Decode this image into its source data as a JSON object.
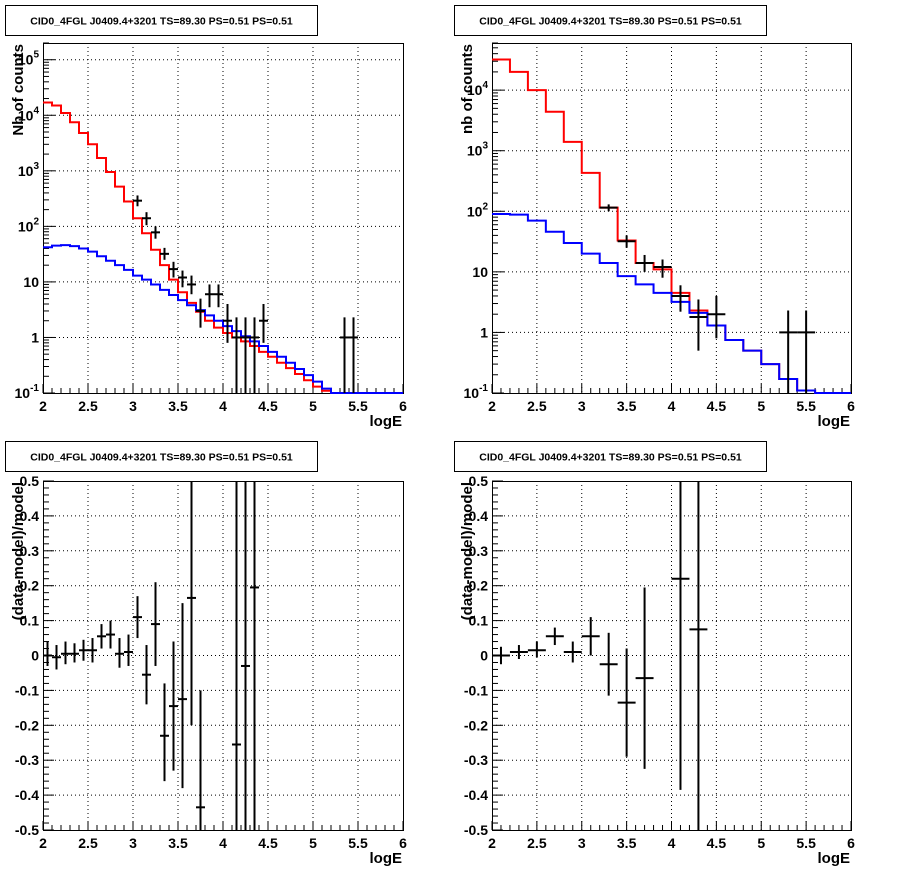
{
  "colors": {
    "data": "#000000",
    "total_model": "#ff0000",
    "component_model": "#0000ff",
    "grid": "#000000"
  },
  "chart_data": [
    {
      "type": "line",
      "title": "CID0_4FGL J0409.4+3201 TS=89.30 PS=0.51 PS=0.51",
      "xlabel": "logE",
      "ylabel": "Nb of counts",
      "xlim": [
        2,
        6
      ],
      "ylim": [
        0.1,
        200000
      ],
      "yscale": "log",
      "grid": true,
      "x_ticks": [
        "2",
        "2.5",
        "3",
        "3.5",
        "4",
        "4.5",
        "5",
        "5.5",
        "6"
      ],
      "y_ticks": [
        {
          "value": 0.1,
          "base": "10",
          "exp": "-1"
        },
        {
          "value": 1,
          "base": "1",
          "exp": ""
        },
        {
          "value": 10,
          "base": "10",
          "exp": ""
        },
        {
          "value": 100,
          "base": "10",
          "exp": "2"
        },
        {
          "value": 1000,
          "base": "10",
          "exp": "3"
        },
        {
          "value": 10000,
          "base": "10",
          "exp": "4"
        },
        {
          "value": 100000,
          "base": "10",
          "exp": "5"
        }
      ],
      "bin_edges": [
        2.0,
        2.1,
        2.2,
        2.3,
        2.4,
        2.5,
        2.6,
        2.7,
        2.8,
        2.9,
        3.0,
        3.1,
        3.2,
        3.3,
        3.4,
        3.5,
        3.6,
        3.7,
        3.8,
        3.9,
        4.0,
        4.1,
        4.2,
        4.3,
        4.4,
        4.5,
        4.6,
        4.7,
        4.8,
        4.9,
        5.0,
        5.1,
        5.2,
        5.3,
        5.4,
        5.5,
        5.6,
        5.7,
        5.8,
        5.9,
        6.0
      ],
      "series": [
        {
          "role": "total_model",
          "draw": "step",
          "values": [
            17000,
            15000,
            11000,
            7500,
            4800,
            3000,
            1700,
            950,
            520,
            280,
            140,
            75,
            38,
            20,
            11,
            6.5,
            4.2,
            2.9,
            2.0,
            1.5,
            1.2,
            1.0,
            0.85,
            0.7,
            0.55,
            0.45,
            0.35,
            0.28,
            0.22,
            0.17,
            0.13,
            0.11,
            0.1,
            0.1,
            0.1,
            0.1,
            0.1,
            0.1,
            0.1,
            0.1
          ]
        },
        {
          "role": "component_model",
          "draw": "step",
          "values": [
            42,
            45,
            46,
            44,
            40,
            35,
            29,
            24,
            20,
            16.5,
            13,
            11,
            9,
            7.2,
            5.8,
            4.7,
            3.8,
            3.1,
            2.5,
            2.0,
            1.6,
            1.3,
            1.05,
            0.85,
            0.7,
            0.55,
            0.45,
            0.35,
            0.27,
            0.21,
            0.16,
            0.12,
            0.1,
            0.1,
            0.1,
            0.1,
            0.1,
            0.1,
            0.1,
            0.1
          ]
        },
        {
          "role": "data",
          "draw": "points",
          "points": [
            {
              "x": 3.05,
              "y": 290,
              "lo": 230,
              "hi": 360
            },
            {
              "x": 3.15,
              "y": 140,
              "lo": 105,
              "hi": 180
            },
            {
              "x": 3.25,
              "y": 78,
              "lo": 60,
              "hi": 100
            },
            {
              "x": 3.35,
              "y": 32,
              "lo": 25,
              "hi": 41
            },
            {
              "x": 3.45,
              "y": 17,
              "lo": 12,
              "hi": 23
            },
            {
              "x": 3.55,
              "y": 12,
              "lo": 8,
              "hi": 16
            },
            {
              "x": 3.65,
              "y": 9,
              "lo": 6,
              "hi": 13
            },
            {
              "x": 3.75,
              "y": 3,
              "lo": 1.5,
              "hi": 5
            },
            {
              "x": 3.85,
              "y": 6,
              "lo": 3.5,
              "hi": 9
            },
            {
              "x": 3.95,
              "y": 6,
              "lo": 3.5,
              "hi": 9
            },
            {
              "x": 4.05,
              "y": 2,
              "lo": 0.8,
              "hi": 4
            },
            {
              "x": 4.15,
              "y": 1,
              "lo": 0.1,
              "hi": 2.3
            },
            {
              "x": 4.25,
              "y": 1,
              "lo": 0.1,
              "hi": 2.3
            },
            {
              "x": 4.35,
              "y": 1,
              "lo": 0.1,
              "hi": 2.3
            },
            {
              "x": 4.45,
              "y": 2,
              "lo": 0.8,
              "hi": 4
            },
            {
              "x": 5.35,
              "y": 1,
              "lo": 0.1,
              "hi": 2.3
            },
            {
              "x": 5.45,
              "y": 1,
              "lo": 0.1,
              "hi": 2.3
            }
          ]
        }
      ]
    },
    {
      "type": "line",
      "title": "CID0_4FGL J0409.4+3201 TS=89.30 PS=0.51 PS=0.51",
      "xlabel": "logE",
      "ylabel": "nb of counts",
      "xlim": [
        2,
        6
      ],
      "ylim": [
        0.1,
        60000
      ],
      "yscale": "log",
      "grid": true,
      "x_ticks": [
        "2",
        "2.5",
        "3",
        "3.5",
        "4",
        "4.5",
        "5",
        "5.5",
        "6"
      ],
      "y_ticks": [
        {
          "value": 0.1,
          "base": "10",
          "exp": "-1"
        },
        {
          "value": 1,
          "base": "1",
          "exp": ""
        },
        {
          "value": 10,
          "base": "10",
          "exp": ""
        },
        {
          "value": 100,
          "base": "10",
          "exp": "2"
        },
        {
          "value": 1000,
          "base": "10",
          "exp": "3"
        },
        {
          "value": 10000,
          "base": "10",
          "exp": "4"
        }
      ],
      "bin_edges": [
        2.0,
        2.2,
        2.4,
        2.6,
        2.8,
        3.0,
        3.2,
        3.4,
        3.6,
        3.8,
        4.0,
        4.2,
        4.4,
        4.6,
        4.8,
        5.0,
        5.2,
        5.4,
        5.6,
        5.8,
        6.0
      ],
      "series": [
        {
          "role": "total_model",
          "draw": "step",
          "values": [
            32000,
            20000,
            10000,
            4400,
            1400,
            430,
            115,
            33,
            14,
            11,
            4.5,
            2.3,
            1.3,
            0.75,
            0.5,
            0.3,
            0.17,
            0.11,
            0.1,
            0.1
          ]
        },
        {
          "role": "component_model",
          "draw": "step",
          "values": [
            90,
            88,
            70,
            46,
            30,
            20,
            14,
            8.5,
            6.2,
            4.5,
            3.2,
            2.1,
            1.3,
            0.75,
            0.5,
            0.3,
            0.17,
            0.11,
            0.1,
            0.1
          ]
        },
        {
          "role": "data",
          "draw": "points",
          "points": [
            {
              "x": 3.3,
              "y": 115,
              "lo": 100,
              "hi": 130
            },
            {
              "x": 3.5,
              "y": 32,
              "lo": 25,
              "hi": 40
            },
            {
              "x": 3.7,
              "y": 14,
              "lo": 10,
              "hi": 19
            },
            {
              "x": 3.9,
              "y": 12,
              "lo": 8,
              "hi": 16
            },
            {
              "x": 4.1,
              "y": 4,
              "lo": 2.2,
              "hi": 6
            },
            {
              "x": 4.3,
              "y": 1.8,
              "lo": 0.5,
              "hi": 3.5
            },
            {
              "x": 4.5,
              "y": 2,
              "lo": 0.8,
              "hi": 4
            },
            {
              "x": 5.3,
              "y": 1,
              "lo": 0.1,
              "hi": 2.3
            },
            {
              "x": 5.5,
              "y": 1,
              "lo": 0.1,
              "hi": 2.3
            }
          ]
        }
      ]
    },
    {
      "type": "scatter",
      "title": "CID0_4FGL J0409.4+3201 TS=89.30 PS=0.51 PS=0.51",
      "xlabel": "logE",
      "ylabel": "(data-model)/model",
      "xlim": [
        2,
        6
      ],
      "ylim": [
        -0.5,
        0.5
      ],
      "yscale": "linear",
      "grid": true,
      "x_ticks": [
        "2",
        "2.5",
        "3",
        "3.5",
        "4",
        "4.5",
        "5",
        "5.5",
        "6"
      ],
      "y_ticks": [
        "-0.5",
        "-0.4",
        "-0.3",
        "-0.2",
        "-0.1",
        "0",
        "0.1",
        "0.2",
        "0.3",
        "0.4",
        "0.5"
      ],
      "bin_half_width": 0.05,
      "series": [
        {
          "role": "data",
          "points": [
            {
              "x": 2.05,
              "y": 0.0,
              "lo": -0.03,
              "hi": 0.04
            },
            {
              "x": 2.15,
              "y": -0.005,
              "lo": -0.04,
              "hi": 0.03
            },
            {
              "x": 2.25,
              "y": 0.005,
              "lo": -0.025,
              "hi": 0.04
            },
            {
              "x": 2.35,
              "y": 0.005,
              "lo": -0.02,
              "hi": 0.035
            },
            {
              "x": 2.45,
              "y": 0.015,
              "lo": -0.015,
              "hi": 0.045
            },
            {
              "x": 2.55,
              "y": 0.015,
              "lo": -0.02,
              "hi": 0.05
            },
            {
              "x": 2.65,
              "y": 0.055,
              "lo": 0.02,
              "hi": 0.09
            },
            {
              "x": 2.75,
              "y": 0.06,
              "lo": 0.02,
              "hi": 0.1
            },
            {
              "x": 2.85,
              "y": 0.005,
              "lo": -0.035,
              "hi": 0.05
            },
            {
              "x": 2.95,
              "y": 0.01,
              "lo": -0.03,
              "hi": 0.06
            },
            {
              "x": 3.05,
              "y": 0.11,
              "lo": 0.05,
              "hi": 0.17
            },
            {
              "x": 3.15,
              "y": -0.055,
              "lo": -0.14,
              "hi": 0.03
            },
            {
              "x": 3.25,
              "y": 0.09,
              "lo": -0.03,
              "hi": 0.21
            },
            {
              "x": 3.35,
              "y": -0.23,
              "lo": -0.36,
              "hi": -0.08
            },
            {
              "x": 3.45,
              "y": -0.145,
              "lo": -0.33,
              "hi": 0.04
            },
            {
              "x": 3.55,
              "y": -0.125,
              "lo": -0.38,
              "hi": 0.15
            },
            {
              "x": 3.65,
              "y": 0.165,
              "lo": -0.2,
              "hi": 0.5
            },
            {
              "x": 3.75,
              "y": -0.435,
              "lo": -0.5,
              "hi": -0.1
            },
            {
              "x": 4.15,
              "y": -0.255,
              "lo": -0.5,
              "hi": 0.5
            },
            {
              "x": 4.25,
              "y": -0.03,
              "lo": -0.5,
              "hi": 0.5
            },
            {
              "x": 4.35,
              "y": 0.195,
              "lo": -0.5,
              "hi": 0.5
            }
          ]
        }
      ]
    },
    {
      "type": "scatter",
      "title": "CID0_4FGL J0409.4+3201 TS=89.30 PS=0.51 PS=0.51",
      "xlabel": "logE",
      "ylabel": "(data-model)/model",
      "xlim": [
        2,
        6
      ],
      "ylim": [
        -0.5,
        0.5
      ],
      "yscale": "linear",
      "grid": true,
      "x_ticks": [
        "2",
        "2.5",
        "3",
        "3.5",
        "4",
        "4.5",
        "5",
        "5.5",
        "6"
      ],
      "y_ticks": [
        "-0.5",
        "-0.4",
        "-0.3",
        "-0.2",
        "-0.1",
        "0",
        "0.1",
        "0.2",
        "0.3",
        "0.4",
        "0.5"
      ],
      "bin_half_width": 0.1,
      "series": [
        {
          "role": "data",
          "points": [
            {
              "x": 2.1,
              "y": 0.0,
              "lo": -0.025,
              "hi": 0.025
            },
            {
              "x": 2.3,
              "y": 0.01,
              "lo": -0.01,
              "hi": 0.03
            },
            {
              "x": 2.5,
              "y": 0.015,
              "lo": -0.005,
              "hi": 0.04
            },
            {
              "x": 2.7,
              "y": 0.055,
              "lo": 0.03,
              "hi": 0.08
            },
            {
              "x": 2.9,
              "y": 0.01,
              "lo": -0.02,
              "hi": 0.04
            },
            {
              "x": 3.1,
              "y": 0.055,
              "lo": 0.0,
              "hi": 0.11
            },
            {
              "x": 3.3,
              "y": -0.025,
              "lo": -0.115,
              "hi": 0.065
            },
            {
              "x": 3.5,
              "y": -0.135,
              "lo": -0.29,
              "hi": 0.02
            },
            {
              "x": 3.7,
              "y": -0.065,
              "lo": -0.325,
              "hi": 0.195
            },
            {
              "x": 4.1,
              "y": 0.22,
              "lo": -0.385,
              "hi": 0.5
            },
            {
              "x": 4.3,
              "y": 0.075,
              "lo": -0.5,
              "hi": 0.5
            }
          ]
        }
      ]
    }
  ]
}
